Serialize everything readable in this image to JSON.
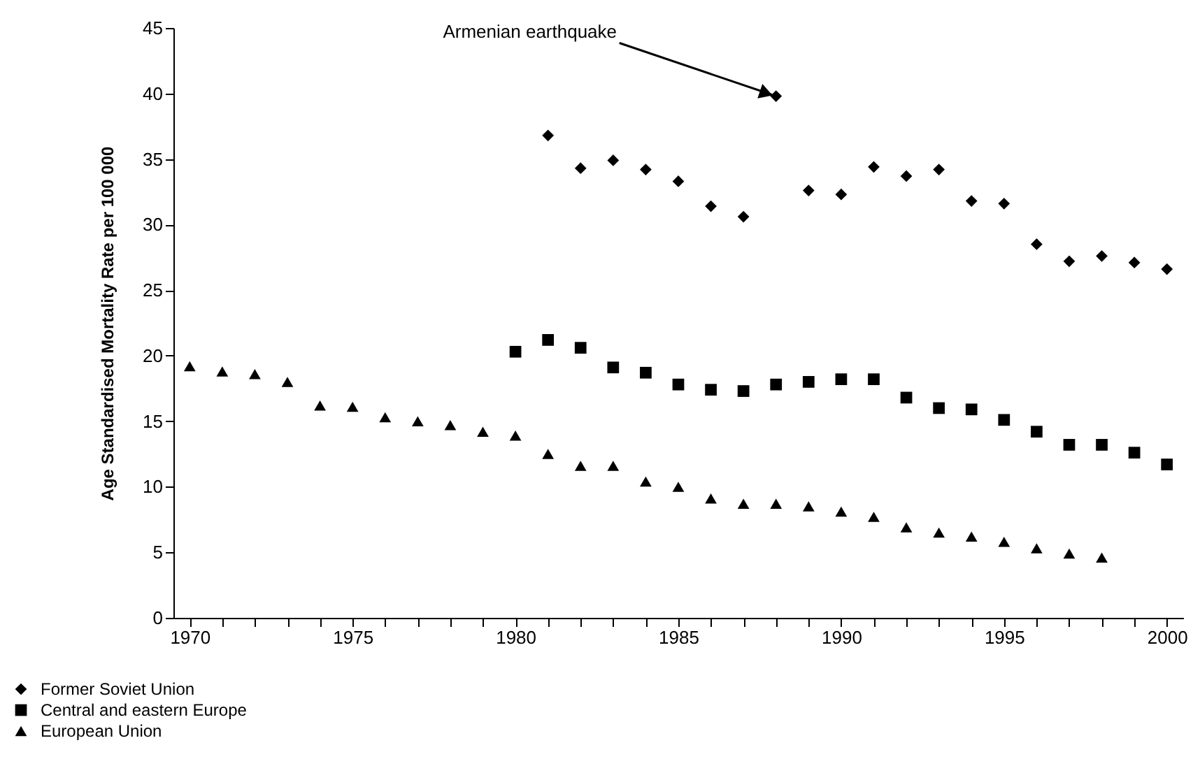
{
  "chart_data": {
    "type": "scatter",
    "ylabel": "Age Standardised Mortality Rate per 100 000",
    "xlim": [
      1969.5,
      2000.5
    ],
    "ylim": [
      0,
      45
    ],
    "yticks": [
      0,
      5,
      10,
      15,
      20,
      25,
      30,
      35,
      40,
      45
    ],
    "xticks": [
      1970,
      {
        "value": 1971,
        "label": null
      },
      {
        "value": 1972,
        "label": null
      },
      {
        "value": 1973,
        "label": null
      },
      {
        "value": 1974,
        "label": null
      },
      1975,
      {
        "value": 1976,
        "label": null
      },
      {
        "value": 1977,
        "label": null
      },
      {
        "value": 1978,
        "label": null
      },
      {
        "value": 1979,
        "label": null
      },
      1980,
      {
        "value": 1981,
        "label": null
      },
      {
        "value": 1982,
        "label": null
      },
      {
        "value": 1983,
        "label": null
      },
      {
        "value": 1984,
        "label": null
      },
      1985,
      {
        "value": 1986,
        "label": null
      },
      {
        "value": 1987,
        "label": null
      },
      {
        "value": 1988,
        "label": null
      },
      {
        "value": 1989,
        "label": null
      },
      1990,
      {
        "value": 1991,
        "label": null
      },
      {
        "value": 1992,
        "label": null
      },
      {
        "value": 1993,
        "label": null
      },
      {
        "value": 1994,
        "label": null
      },
      1995,
      {
        "value": 1996,
        "label": null
      },
      {
        "value": 1997,
        "label": null
      },
      {
        "value": 1998,
        "label": null
      },
      {
        "value": 1999,
        "label": null
      },
      2000
    ],
    "grid": false,
    "legend": "bottom left",
    "annotations": [
      {
        "text": "Armenian earthquake",
        "x": 1988,
        "y": 39.8
      }
    ],
    "series": [
      {
        "name": "Former Soviet Union",
        "color": "#000000",
        "marker": "diamond",
        "x": [
          1981,
          1982,
          1983,
          1984,
          1985,
          1986,
          1987,
          1988,
          1989,
          1990,
          1991,
          1992,
          1993,
          1994,
          1995,
          1996,
          1997,
          1998,
          1999,
          2000
        ],
        "values": [
          36.8,
          34.3,
          34.9,
          34.2,
          33.3,
          31.4,
          30.6,
          39.8,
          32.6,
          32.3,
          34.4,
          33.7,
          34.2,
          31.8,
          31.6,
          28.5,
          27.2,
          27.6,
          27.1,
          26.6
        ]
      },
      {
        "name": "Central and eastern Europe",
        "color": "#000000",
        "marker": "square",
        "x": [
          1980,
          1981,
          1982,
          1983,
          1984,
          1985,
          1986,
          1987,
          1988,
          1989,
          1990,
          1991,
          1992,
          1993,
          1994,
          1995,
          1996,
          1997,
          1998,
          1999,
          2000
        ],
        "values": [
          20.3,
          21.2,
          20.6,
          19.1,
          18.7,
          17.8,
          17.4,
          17.3,
          17.8,
          18.0,
          18.2,
          18.2,
          16.8,
          16.0,
          15.9,
          15.1,
          14.2,
          13.2,
          13.2,
          12.6,
          11.7
        ]
      },
      {
        "name": "European Union",
        "color": "#000000",
        "marker": "triangle",
        "x": [
          1970,
          1971,
          1972,
          1973,
          1974,
          1975,
          1976,
          1977,
          1978,
          1979,
          1980,
          1981,
          1982,
          1983,
          1984,
          1985,
          1986,
          1987,
          1988,
          1989,
          1990,
          1991,
          1992,
          1993,
          1994,
          1995,
          1996,
          1997,
          1998
        ],
        "values": [
          19.2,
          18.8,
          18.6,
          18.0,
          16.2,
          16.1,
          15.3,
          15.0,
          14.7,
          14.2,
          13.9,
          12.5,
          11.6,
          11.6,
          10.4,
          10.0,
          9.1,
          8.7,
          8.7,
          8.5,
          8.1,
          7.7,
          6.9,
          6.5,
          6.2,
          5.8,
          5.3,
          4.9,
          4.6
        ]
      }
    ]
  }
}
